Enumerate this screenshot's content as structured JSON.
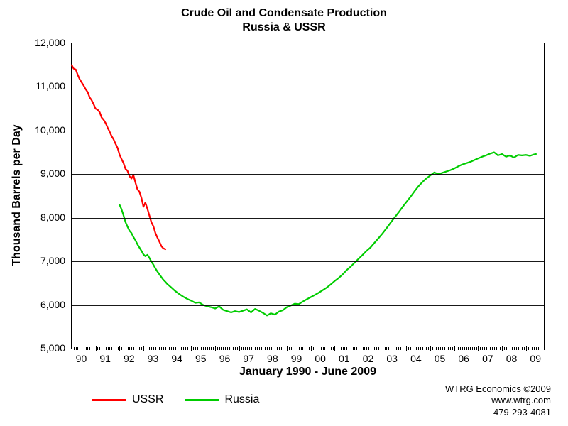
{
  "chart": {
    "type": "line",
    "title_line1": "Crude Oil and Condensate Production",
    "title_line2": "Russia & USSR",
    "title_fontsize": 16,
    "title_fontweight": "bold",
    "background_color": "#ffffff",
    "plot_border_color": "#000000",
    "grid_color": "#000000",
    "yaxis": {
      "label": "Thousand Barrels per Day",
      "label_fontsize": 16,
      "min": 5000,
      "max": 12000,
      "tick_step": 1000,
      "tick_labels": [
        "5,000",
        "6,000",
        "7,000",
        "8,000",
        "9,000",
        "10,000",
        "11,000",
        "12,000"
      ],
      "tick_fontsize": 14
    },
    "xaxis": {
      "label": "January 1990 - June 2009",
      "label_fontsize": 16,
      "min": 1990.0,
      "max": 2009.75,
      "major_tick_step_years": 1,
      "minor_ticks_per_year": 12,
      "tick_labels": [
        "90",
        "91",
        "92",
        "93",
        "94",
        "95",
        "96",
        "97",
        "98",
        "99",
        "00",
        "01",
        "02",
        "03",
        "04",
        "05",
        "06",
        "07",
        "08",
        "09"
      ],
      "tick_fontsize": 14
    },
    "legend": {
      "position": "bottom-left",
      "fontsize": 16,
      "items": [
        {
          "label": "USSR",
          "color": "#ff0000"
        },
        {
          "label": "Russia",
          "color": "#00cc00"
        }
      ]
    },
    "line_width": 2.2,
    "series": [
      {
        "name": "USSR",
        "color": "#ff0000",
        "data": [
          [
            1990.0,
            11500
          ],
          [
            1990.08,
            11420
          ],
          [
            1990.17,
            11400
          ],
          [
            1990.25,
            11280
          ],
          [
            1990.33,
            11180
          ],
          [
            1990.42,
            11100
          ],
          [
            1990.5,
            11030
          ],
          [
            1990.58,
            10950
          ],
          [
            1990.67,
            10880
          ],
          [
            1990.75,
            10760
          ],
          [
            1990.83,
            10700
          ],
          [
            1990.92,
            10600
          ],
          [
            1991.0,
            10500
          ],
          [
            1991.08,
            10480
          ],
          [
            1991.17,
            10420
          ],
          [
            1991.25,
            10300
          ],
          [
            1991.33,
            10250
          ],
          [
            1991.42,
            10170
          ],
          [
            1991.5,
            10070
          ],
          [
            1991.58,
            9980
          ],
          [
            1991.67,
            9870
          ],
          [
            1991.75,
            9800
          ],
          [
            1991.83,
            9700
          ],
          [
            1991.92,
            9600
          ],
          [
            1992.0,
            9450
          ],
          [
            1992.08,
            9350
          ],
          [
            1992.17,
            9250
          ],
          [
            1992.25,
            9120
          ],
          [
            1992.33,
            9080
          ],
          [
            1992.42,
            8950
          ],
          [
            1992.5,
            8900
          ],
          [
            1992.58,
            8980
          ],
          [
            1992.67,
            8800
          ],
          [
            1992.75,
            8650
          ],
          [
            1992.83,
            8600
          ],
          [
            1992.92,
            8450
          ],
          [
            1993.0,
            8250
          ],
          [
            1993.08,
            8350
          ],
          [
            1993.17,
            8200
          ],
          [
            1993.25,
            8050
          ],
          [
            1993.33,
            7900
          ],
          [
            1993.42,
            7800
          ],
          [
            1993.5,
            7650
          ],
          [
            1993.58,
            7550
          ],
          [
            1993.67,
            7450
          ],
          [
            1993.75,
            7350
          ],
          [
            1993.83,
            7300
          ],
          [
            1993.92,
            7280
          ]
        ]
      },
      {
        "name": "Russia",
        "color": "#00cc00",
        "data": [
          [
            1992.0,
            8300
          ],
          [
            1992.08,
            8200
          ],
          [
            1992.17,
            8050
          ],
          [
            1992.25,
            7900
          ],
          [
            1992.33,
            7800
          ],
          [
            1992.42,
            7700
          ],
          [
            1992.5,
            7650
          ],
          [
            1992.58,
            7560
          ],
          [
            1992.67,
            7480
          ],
          [
            1992.75,
            7390
          ],
          [
            1992.83,
            7320
          ],
          [
            1992.92,
            7240
          ],
          [
            1993.0,
            7160
          ],
          [
            1993.08,
            7120
          ],
          [
            1993.17,
            7150
          ],
          [
            1993.25,
            7080
          ],
          [
            1993.33,
            7000
          ],
          [
            1993.42,
            6920
          ],
          [
            1993.5,
            6840
          ],
          [
            1993.58,
            6770
          ],
          [
            1993.67,
            6700
          ],
          [
            1993.75,
            6640
          ],
          [
            1993.83,
            6580
          ],
          [
            1993.92,
            6530
          ],
          [
            1994.0,
            6480
          ],
          [
            1994.17,
            6400
          ],
          [
            1994.33,
            6320
          ],
          [
            1994.5,
            6250
          ],
          [
            1994.67,
            6190
          ],
          [
            1994.83,
            6140
          ],
          [
            1995.0,
            6100
          ],
          [
            1995.17,
            6050
          ],
          [
            1995.33,
            6060
          ],
          [
            1995.5,
            6000
          ],
          [
            1995.67,
            5970
          ],
          [
            1995.83,
            5950
          ],
          [
            1996.0,
            5920
          ],
          [
            1996.17,
            5970
          ],
          [
            1996.33,
            5890
          ],
          [
            1996.5,
            5860
          ],
          [
            1996.67,
            5830
          ],
          [
            1996.83,
            5860
          ],
          [
            1997.0,
            5840
          ],
          [
            1997.17,
            5870
          ],
          [
            1997.33,
            5900
          ],
          [
            1997.5,
            5830
          ],
          [
            1997.67,
            5910
          ],
          [
            1997.83,
            5870
          ],
          [
            1998.0,
            5820
          ],
          [
            1998.17,
            5760
          ],
          [
            1998.33,
            5810
          ],
          [
            1998.5,
            5780
          ],
          [
            1998.67,
            5850
          ],
          [
            1998.83,
            5880
          ],
          [
            1999.0,
            5950
          ],
          [
            1999.17,
            5990
          ],
          [
            1999.33,
            6030
          ],
          [
            1999.5,
            6020
          ],
          [
            1999.67,
            6080
          ],
          [
            1999.83,
            6130
          ],
          [
            2000.0,
            6180
          ],
          [
            2000.17,
            6230
          ],
          [
            2000.33,
            6280
          ],
          [
            2000.5,
            6340
          ],
          [
            2000.67,
            6400
          ],
          [
            2000.83,
            6470
          ],
          [
            2001.0,
            6550
          ],
          [
            2001.17,
            6620
          ],
          [
            2001.33,
            6700
          ],
          [
            2001.5,
            6800
          ],
          [
            2001.67,
            6880
          ],
          [
            2001.83,
            6970
          ],
          [
            2002.0,
            7060
          ],
          [
            2002.17,
            7150
          ],
          [
            2002.33,
            7240
          ],
          [
            2002.5,
            7320
          ],
          [
            2002.67,
            7430
          ],
          [
            2002.83,
            7530
          ],
          [
            2003.0,
            7640
          ],
          [
            2003.17,
            7760
          ],
          [
            2003.33,
            7880
          ],
          [
            2003.5,
            8000
          ],
          [
            2003.67,
            8120
          ],
          [
            2003.83,
            8240
          ],
          [
            2004.0,
            8360
          ],
          [
            2004.17,
            8480
          ],
          [
            2004.33,
            8600
          ],
          [
            2004.5,
            8720
          ],
          [
            2004.67,
            8820
          ],
          [
            2004.83,
            8900
          ],
          [
            2005.0,
            8970
          ],
          [
            2005.17,
            9040
          ],
          [
            2005.33,
            9000
          ],
          [
            2005.5,
            9030
          ],
          [
            2005.67,
            9060
          ],
          [
            2005.83,
            9090
          ],
          [
            2006.0,
            9130
          ],
          [
            2006.17,
            9180
          ],
          [
            2006.33,
            9220
          ],
          [
            2006.5,
            9250
          ],
          [
            2006.67,
            9280
          ],
          [
            2006.83,
            9320
          ],
          [
            2007.0,
            9360
          ],
          [
            2007.17,
            9400
          ],
          [
            2007.33,
            9430
          ],
          [
            2007.5,
            9470
          ],
          [
            2007.67,
            9500
          ],
          [
            2007.83,
            9430
          ],
          [
            2008.0,
            9460
          ],
          [
            2008.17,
            9400
          ],
          [
            2008.33,
            9430
          ],
          [
            2008.5,
            9380
          ],
          [
            2008.67,
            9440
          ],
          [
            2008.83,
            9430
          ],
          [
            2009.0,
            9440
          ],
          [
            2009.17,
            9420
          ],
          [
            2009.33,
            9450
          ],
          [
            2009.42,
            9460
          ]
        ]
      }
    ],
    "attribution": {
      "line1": "WTRG Economics  ©2009",
      "line2": "www.wtrg.com",
      "line3": "479-293-4081",
      "fontsize": 13
    }
  }
}
